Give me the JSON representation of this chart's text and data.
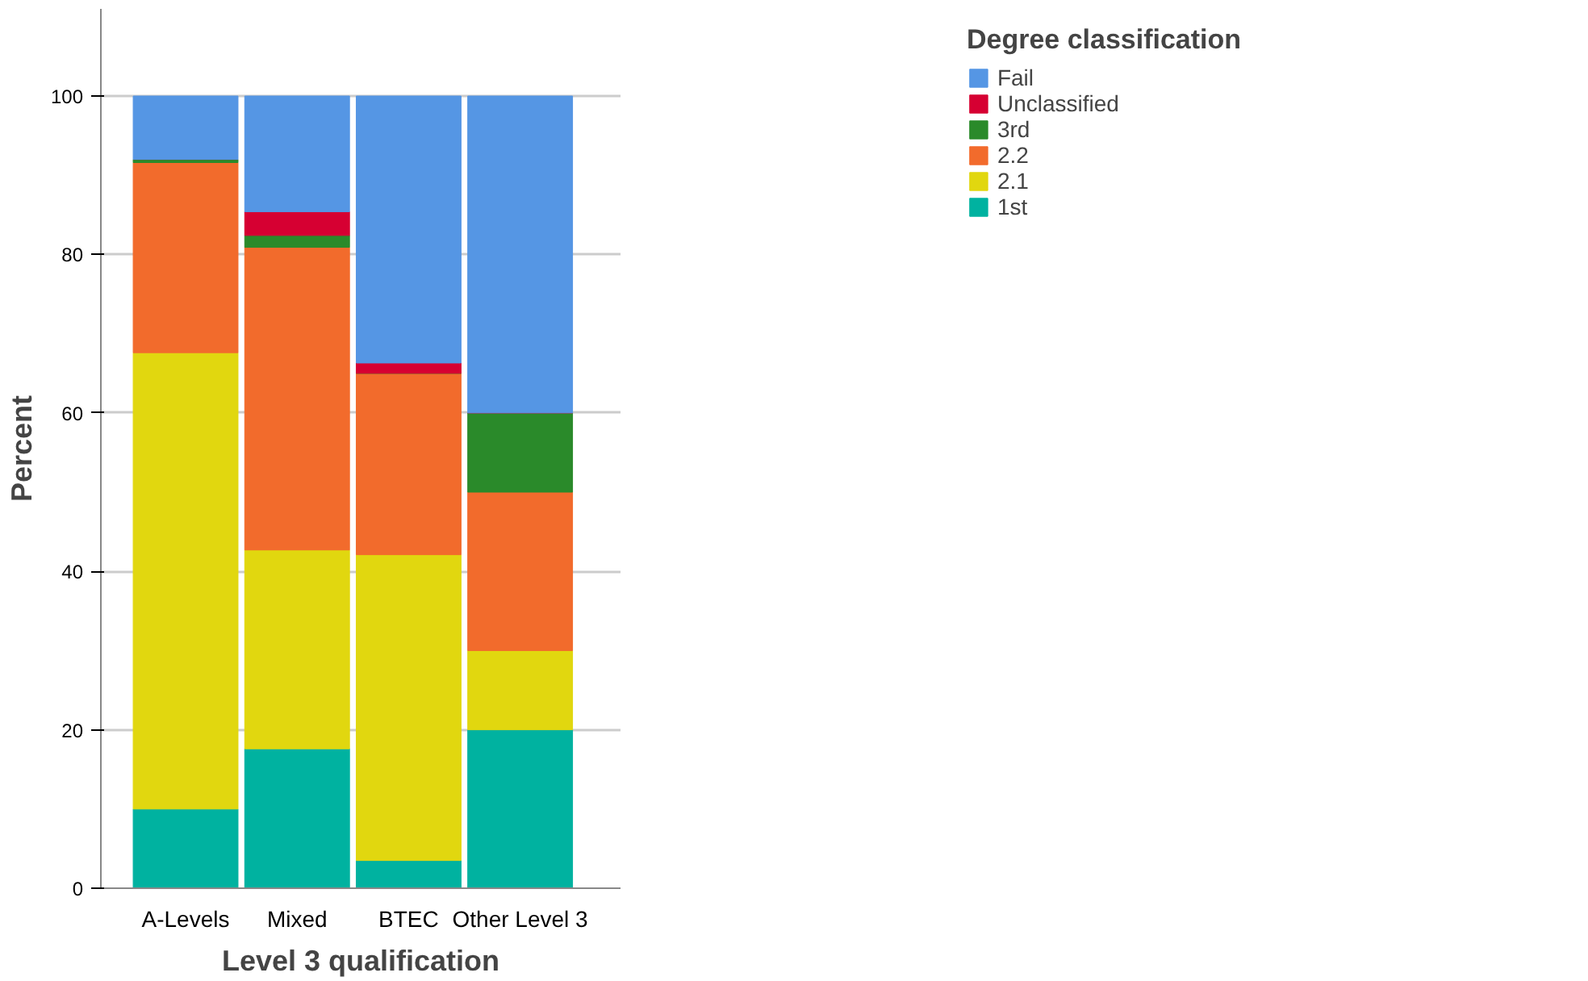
{
  "chart_data": {
    "type": "bar",
    "stacked": true,
    "xlabel": "Level 3 qualification",
    "ylabel": "Percent",
    "legend_title": "Degree classification",
    "categories": [
      "A-Levels",
      "Mixed",
      "BTEC",
      "Other Level 3"
    ],
    "series": [
      {
        "name": "1st",
        "color": "#00b2a0",
        "values": [
          10.0,
          17.6,
          3.5,
          20.0
        ]
      },
      {
        "name": "2.1",
        "color": "#e1d70f",
        "values": [
          57.6,
          25.1,
          38.6,
          10.0
        ]
      },
      {
        "name": "2.2",
        "color": "#f26b2c",
        "values": [
          24.0,
          38.2,
          22.9,
          20.0
        ]
      },
      {
        "name": "3rd",
        "color": "#2a8a2a",
        "values": [
          0.4,
          1.5,
          0,
          10.0
        ]
      },
      {
        "name": "Unclassified",
        "color": "#d60032",
        "values": [
          0,
          3.0,
          1.3,
          0
        ]
      },
      {
        "name": "Fail",
        "color": "#5596e4",
        "values": [
          8.0,
          14.6,
          33.7,
          40.0
        ]
      }
    ],
    "ylim": [
      0,
      111
    ],
    "yticks": [
      0,
      20,
      40,
      60,
      80,
      100
    ],
    "grid": "y",
    "legend": "top right"
  }
}
